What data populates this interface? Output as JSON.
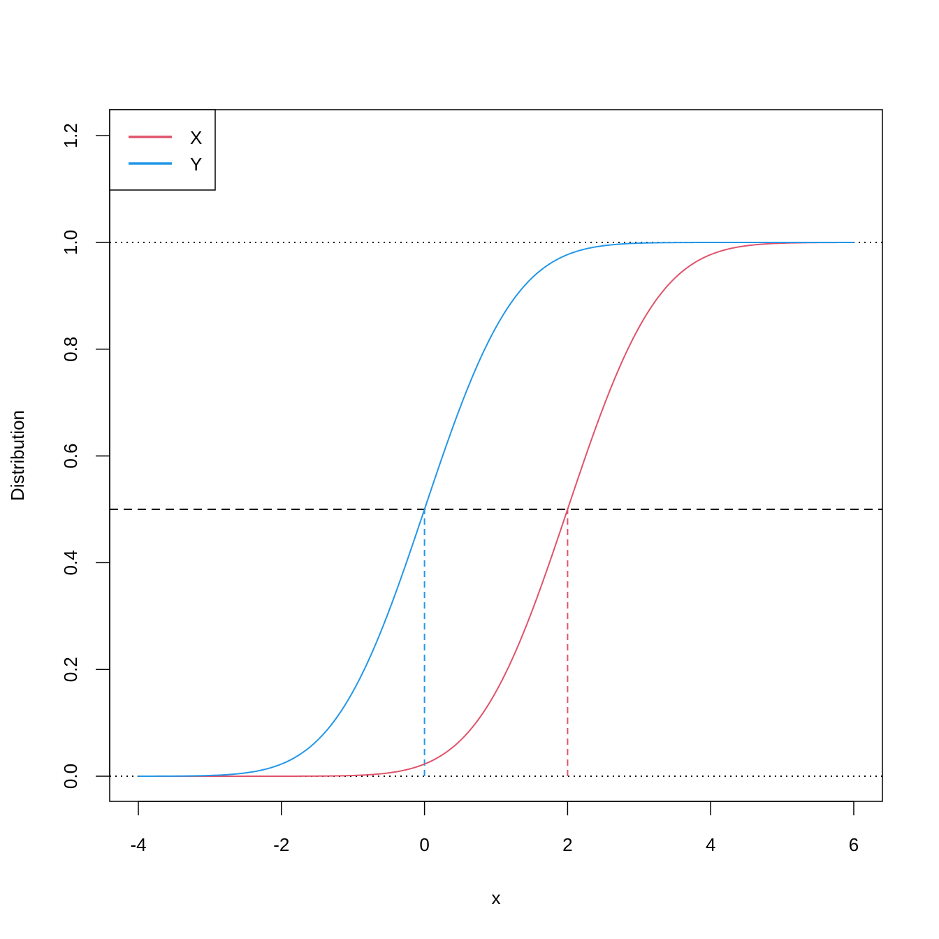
{
  "chart_data": {
    "type": "line",
    "title": "",
    "xlabel": "x",
    "ylabel": "Distribution",
    "xlim": [
      -4,
      6
    ],
    "ylim": [
      0,
      1.2
    ],
    "xticks": [
      -4,
      -2,
      0,
      2,
      4,
      6
    ],
    "xtick_labels": [
      "-4",
      "-2",
      "0",
      "2",
      "4",
      "6"
    ],
    "yticks": [
      0,
      0.2,
      0.4,
      0.6,
      0.8,
      1.0,
      1.2
    ],
    "ytick_labels": [
      "0.0",
      "0.2",
      "0.4",
      "0.6",
      "0.8",
      "1.0",
      "1.2"
    ],
    "grid": false,
    "legend": {
      "position": "top-left",
      "entries": [
        "X",
        "Y"
      ]
    },
    "series": [
      {
        "name": "X",
        "distribution": "normal cdf",
        "mean": 2,
        "sd": 1,
        "x_range": [
          -4,
          6
        ],
        "color": "#DF536B"
      },
      {
        "name": "Y",
        "distribution": "normal cdf",
        "mean": 0,
        "sd": 1,
        "x_range": [
          -4,
          6
        ],
        "color": "#2297E6"
      }
    ],
    "reference_lines": {
      "horizontal_dotted": [
        0,
        1
      ],
      "horizontal_dashed": [
        0.5
      ],
      "vertical_dashed": [
        {
          "x": 0,
          "to_y": 0.5,
          "series": "Y"
        },
        {
          "x": 2,
          "to_y": 0.5,
          "series": "X"
        }
      ]
    }
  }
}
